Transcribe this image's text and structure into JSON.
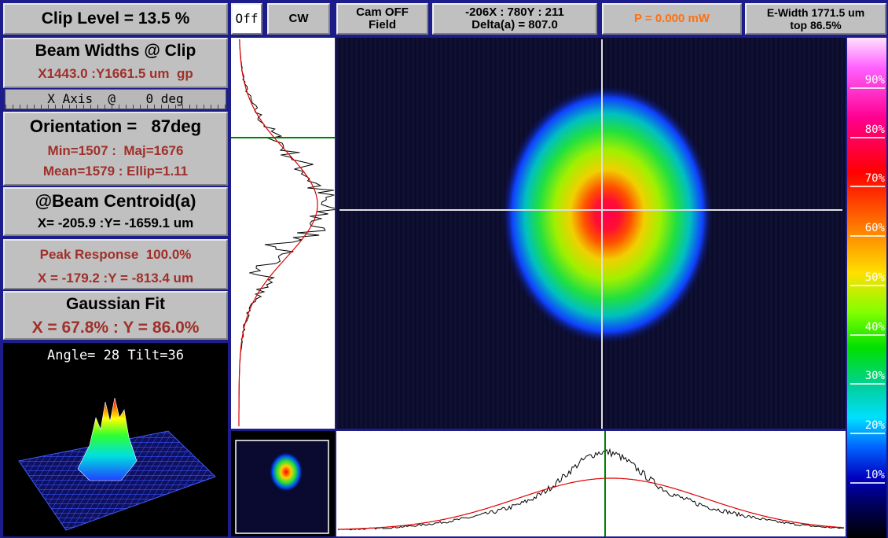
{
  "left_panel": {
    "clip_level": "Clip Level = 13.5 %",
    "beam_widths": {
      "title": "Beam Widths @ Clip",
      "value": "X1443.0 :Y1661.5 um  gp"
    },
    "axis_control": "X Axis  @    0 deg",
    "orientation": {
      "title": "Orientation =   87deg",
      "line1": "Min=1507 :  Maj=1676",
      "line2": "Mean=1579 : Ellip=1.11"
    },
    "centroid": {
      "title": "@Beam Centroid(a)",
      "value": "X= -205.9 :Y= -1659.1 um"
    },
    "peak": {
      "title": "Peak Response  100.0%",
      "value": "X = -179.2 :Y = -813.4 um"
    },
    "gaussian": {
      "title": "Gaussian Fit",
      "value": "X = 67.8% : Y = 86.0%"
    },
    "view3d": {
      "caption": "Angle= 28 Tilt=36"
    }
  },
  "toolbar": {
    "buttons": [
      {
        "lines": [
          "Off"
        ]
      },
      {
        "lines": [
          "CW"
        ]
      },
      {
        "lines": [
          "Cam OFF",
          "Field"
        ]
      },
      {
        "lines": [
          "-206X : 780Y : 211",
          "Delta(a) = 807.0"
        ]
      },
      {
        "lines": [
          "P = 0.000 mW"
        ]
      },
      {
        "lines": [
          "E-Width 1771.5 um",
          "top 86.5%"
        ]
      }
    ]
  },
  "color_scale": {
    "labels": [
      "90%",
      "80%",
      "70%",
      "60%",
      "50%",
      "40%",
      "30%",
      "20%",
      "10%"
    ]
  }
}
